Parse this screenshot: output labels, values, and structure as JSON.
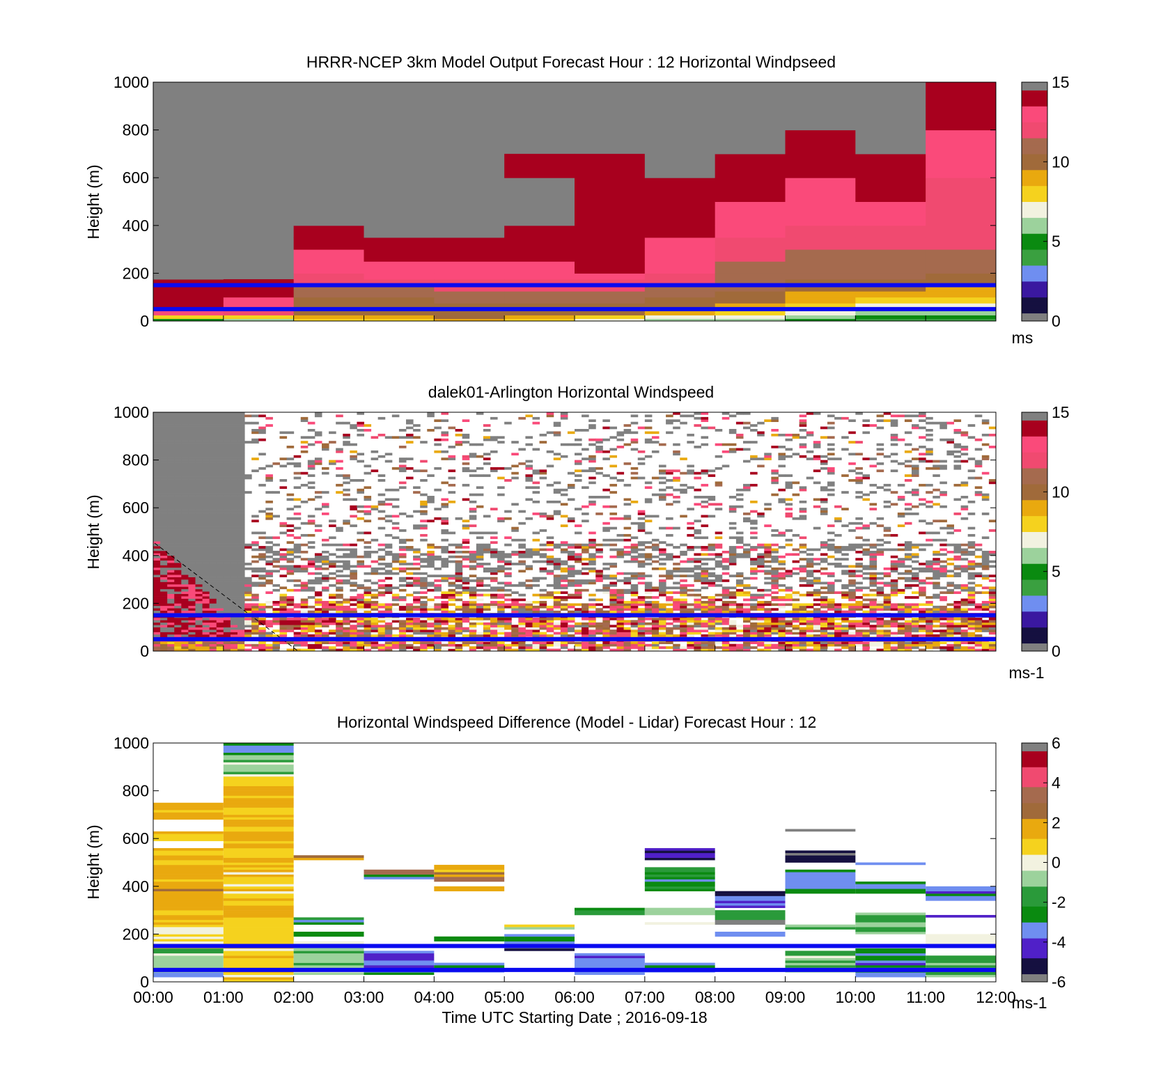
{
  "figure": {
    "xlabel": "Time UTC  Starting Date ; 2016-09-18",
    "x_ticks": [
      "00:00",
      "01:00",
      "02:00",
      "03:00",
      "04:00",
      "05:00",
      "06:00",
      "07:00",
      "08:00",
      "09:00",
      "10:00",
      "11:00",
      "12:00"
    ],
    "y_ticks": [
      "0",
      "200",
      "400",
      "600",
      "800",
      "1000"
    ]
  },
  "colors": {
    "lidar_lines": "#0a0af0",
    "missing": "#808080",
    "colormap_speed": [
      "#808080",
      "#151040",
      "#3a18a0",
      "#6f8ef0",
      "#3aa040",
      "#0a8a10",
      "#9cd29c",
      "#f2f2e0",
      "#f5d21e",
      "#e9a90f",
      "#a06a3a",
      "#a56a4e",
      "#f04a70",
      "#fa4a7a",
      "#a8001e",
      "#808080"
    ],
    "colormap_diff": [
      "#808080",
      "#151040",
      "#5020c8",
      "#6f8ef0",
      "#0a8a10",
      "#2a9a3a",
      "#9cd29c",
      "#f2f2e0",
      "#f5d21e",
      "#e9a90f",
      "#a06a3a",
      "#a56a4e",
      "#f04a70",
      "#a8001e",
      "#808080"
    ]
  },
  "chart_data": [
    {
      "type": "heatmap",
      "title": "HRRR-NCEP 3km Model Output   Forecast Hour : 12 Horizontal Windpseed",
      "ylabel": "Height (m)",
      "ylim": [
        0,
        1000
      ],
      "colorbar": {
        "range": [
          0,
          15
        ],
        "ticks": [
          "0",
          "5",
          "10",
          "15"
        ],
        "unit": "ms"
      },
      "x_hours": [
        0,
        1,
        2,
        3,
        4,
        5,
        6,
        7,
        8,
        9,
        10,
        11,
        12
      ],
      "height_layers_m": [
        0,
        10,
        25,
        50,
        75,
        100,
        125,
        150,
        175,
        200,
        250,
        300,
        350,
        400,
        500,
        600,
        700,
        800,
        900,
        1000
      ],
      "columns": [
        [
          5,
          8,
          13,
          14,
          14,
          14,
          14,
          14,
          15
        ],
        [
          6,
          8,
          12,
          13,
          13,
          14,
          14,
          14
        ],
        [
          8,
          9,
          10,
          10,
          10,
          11,
          11,
          12,
          12,
          13,
          13,
          14,
          14,
          15
        ],
        [
          8,
          9,
          10,
          10,
          10,
          11,
          11,
          12,
          13,
          13,
          14,
          14,
          15
        ],
        [
          9,
          10,
          10,
          10,
          11,
          11,
          12,
          12,
          13,
          13,
          14,
          14,
          15,
          15,
          15
        ],
        [
          8,
          9,
          10,
          10,
          11,
          11,
          12,
          12,
          13,
          13,
          14,
          14,
          14,
          15,
          15,
          14
        ],
        [
          7,
          8,
          10,
          10,
          11,
          11,
          12,
          12,
          13,
          14,
          14,
          14,
          14,
          14,
          14,
          14
        ],
        [
          6,
          7,
          9,
          10,
          10,
          11,
          11,
          12,
          12,
          13,
          13,
          13,
          14,
          14,
          14,
          15,
          15,
          15
        ],
        [
          6,
          7,
          8,
          9,
          10,
          10,
          11,
          11,
          11,
          11,
          12,
          12,
          13,
          13,
          14,
          14,
          15,
          15
        ],
        [
          5,
          6,
          7,
          8,
          9,
          9,
          10,
          10,
          11,
          11,
          11,
          12,
          12,
          13,
          13,
          14,
          14,
          15
        ],
        [
          4,
          5,
          6,
          7,
          8,
          9,
          10,
          10,
          11,
          11,
          11,
          12,
          12,
          13,
          14,
          14,
          15,
          15,
          15
        ],
        [
          4,
          5,
          6,
          7,
          8,
          9,
          9,
          10,
          10,
          11,
          11,
          12,
          12,
          12,
          12,
          13,
          13,
          14,
          14
        ]
      ]
    },
    {
      "type": "heatmap",
      "title": "dalek01-Arlington  Horizontal Windspeed",
      "ylabel": "Height (m)",
      "ylim": [
        0,
        1000
      ],
      "colorbar": {
        "range": [
          0,
          15
        ],
        "ticks": [
          "0",
          "5",
          "10",
          "15"
        ],
        "unit": "ms-1"
      },
      "x_range_hours": [
        0,
        12
      ],
      "lidar_heights_m": [
        50,
        150
      ]
    },
    {
      "type": "heatmap",
      "title": "Horizontal Windspeed Difference (Model - Lidar) Forecast Hour : 12",
      "ylabel": "Height (m)",
      "ylim": [
        0,
        1000
      ],
      "colorbar": {
        "range": [
          -6,
          6
        ],
        "ticks": [
          "-6",
          "-4",
          "-2",
          "0",
          "2",
          "4",
          "6"
        ],
        "unit": "ms-1"
      },
      "x_range_hours": [
        0,
        12
      ],
      "blocks": [
        {
          "hour": 0,
          "ranges": [
            [
              20,
              40,
              -3
            ],
            [
              40,
              140,
              -1
            ],
            [
              140,
              230,
              0
            ],
            [
              230,
              560,
              1.5
            ],
            [
              590,
              630,
              1
            ],
            [
              680,
              750,
              1.5
            ]
          ]
        },
        {
          "hour": 1,
          "ranges": [
            [
              0,
              10,
              0.5
            ],
            [
              10,
              600,
              1
            ],
            [
              600,
              860,
              1.3
            ],
            [
              860,
              950,
              -1
            ],
            [
              950,
              1000,
              -3
            ]
          ]
        },
        {
          "hour": 2,
          "ranges": [
            [
              30,
              170,
              -1
            ],
            [
              190,
              210,
              -2
            ],
            [
              240,
              270,
              -2.5
            ],
            [
              510,
              530,
              2.5
            ]
          ]
        },
        {
          "hour": 3,
          "ranges": [
            [
              30,
              130,
              -3.5
            ],
            [
              430,
              450,
              -2.5
            ],
            [
              450,
              470,
              3
            ]
          ]
        },
        {
          "hour": 4,
          "ranges": [
            [
              40,
              80,
              -3
            ],
            [
              170,
              190,
              -2.5
            ],
            [
              380,
              400,
              1.5
            ],
            [
              420,
              440,
              3
            ],
            [
              440,
              490,
              1.5
            ]
          ]
        },
        {
          "hour": 5,
          "ranges": [
            [
              130,
              150,
              -5
            ],
            [
              150,
              200,
              -3
            ],
            [
              220,
              240,
              0.2
            ]
          ]
        },
        {
          "hour": 6,
          "ranges": [
            [
              30,
              120,
              -3.5
            ],
            [
              280,
              300,
              -0.8
            ],
            [
              300,
              310,
              -3
            ]
          ]
        },
        {
          "hour": 7,
          "ranges": [
            [
              40,
              80,
              -3
            ],
            [
              240,
              250,
              0.3
            ],
            [
              280,
              310,
              -1.5
            ],
            [
              380,
              480,
              -2.5
            ],
            [
              510,
              560,
              -5
            ]
          ]
        },
        {
          "hour": 8,
          "ranges": [
            [
              190,
              210,
              -3
            ],
            [
              240,
              260,
              -5.5
            ],
            [
              260,
              300,
              -2
            ],
            [
              310,
              360,
              -4
            ],
            [
              360,
              380,
              -5
            ]
          ]
        },
        {
          "hour": 9,
          "ranges": [
            [
              40,
              130,
              -1
            ],
            [
              220,
              240,
              -1.5
            ],
            [
              370,
              470,
              -3
            ],
            [
              500,
              550,
              -5.5
            ],
            [
              630,
              640,
              -5
            ]
          ]
        },
        {
          "hour": 10,
          "ranges": [
            [
              20,
              140,
              -3.5
            ],
            [
              200,
              290,
              -1.5
            ],
            [
              370,
              420,
              -3
            ],
            [
              490,
              500,
              -3
            ]
          ]
        },
        {
          "hour": 11,
          "ranges": [
            [
              20,
              110,
              -1.5
            ],
            [
              160,
              200,
              0.5
            ],
            [
              270,
              280,
              -5
            ],
            [
              340,
              400,
              -3.5
            ]
          ]
        }
      ]
    }
  ]
}
